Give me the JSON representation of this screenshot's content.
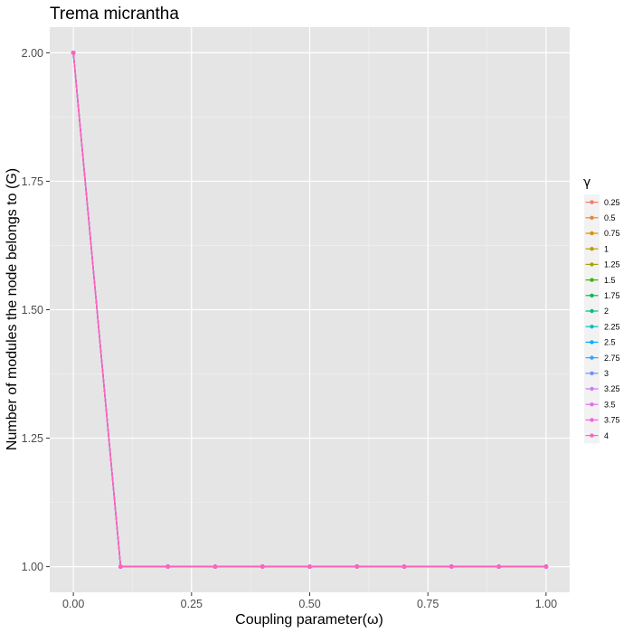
{
  "chart_data": {
    "type": "line",
    "title": "Trema micrantha",
    "xlabel": "Coupling parameter(ω)",
    "ylabel": "Number of modules the node belongs to (G)",
    "xlim": [
      -0.05,
      1.05
    ],
    "ylim": [
      0.95,
      2.05
    ],
    "x_ticks": [
      0,
      0.25,
      0.5,
      0.75,
      1
    ],
    "x_tick_labels": [
      "0.00",
      "0.25",
      "0.50",
      "0.75",
      "1.00"
    ],
    "y_ticks": [
      1,
      1.25,
      1.5,
      1.75,
      2
    ],
    "y_tick_labels": [
      "1.00",
      "1.25",
      "1.50",
      "1.75",
      "2.00"
    ],
    "grid": true,
    "legend_title": "γ",
    "legend_position": "right",
    "x": [
      0,
      0.1,
      0.2,
      0.3,
      0.4,
      0.5,
      0.6,
      0.7,
      0.8,
      0.9,
      1.0
    ],
    "series": [
      {
        "name": "0.25",
        "color": "#F8766D",
        "values": [
          2,
          1,
          1,
          1,
          1,
          1,
          1,
          1,
          1,
          1,
          1
        ]
      },
      {
        "name": "0.5",
        "color": "#EA8331",
        "values": [
          2,
          1,
          1,
          1,
          1,
          1,
          1,
          1,
          1,
          1,
          1
        ]
      },
      {
        "name": "0.75",
        "color": "#D89000",
        "values": [
          2,
          1,
          1,
          1,
          1,
          1,
          1,
          1,
          1,
          1,
          1
        ]
      },
      {
        "name": "1",
        "color": "#C09B00",
        "values": [
          2,
          1,
          1,
          1,
          1,
          1,
          1,
          1,
          1,
          1,
          1
        ]
      },
      {
        "name": "1.25",
        "color": "#A3A500",
        "values": [
          2,
          1,
          1,
          1,
          1,
          1,
          1,
          1,
          1,
          1,
          1
        ]
      },
      {
        "name": "1.5",
        "color": "#39B600",
        "values": [
          2,
          1,
          1,
          1,
          1,
          1,
          1,
          1,
          1,
          1,
          1
        ]
      },
      {
        "name": "1.75",
        "color": "#00BB4E",
        "values": [
          2,
          1,
          1,
          1,
          1,
          1,
          1,
          1,
          1,
          1,
          1
        ]
      },
      {
        "name": "2",
        "color": "#00BF7D",
        "values": [
          2,
          1,
          1,
          1,
          1,
          1,
          1,
          1,
          1,
          1,
          1
        ]
      },
      {
        "name": "2.25",
        "color": "#00BFC4",
        "values": [
          2,
          1,
          1,
          1,
          1,
          1,
          1,
          1,
          1,
          1,
          1
        ]
      },
      {
        "name": "2.5",
        "color": "#00B0F6",
        "values": [
          2,
          1,
          1,
          1,
          1,
          1,
          1,
          1,
          1,
          1,
          1
        ]
      },
      {
        "name": "2.75",
        "color": "#35A2FF",
        "values": [
          2,
          1,
          1,
          1,
          1,
          1,
          1,
          1,
          1,
          1,
          1
        ]
      },
      {
        "name": "3",
        "color": "#6F8EFF",
        "values": [
          2,
          1,
          1,
          1,
          1,
          1,
          1,
          1,
          1,
          1,
          1
        ]
      },
      {
        "name": "3.25",
        "color": "#C77CFF",
        "values": [
          2,
          1,
          1,
          1,
          1,
          1,
          1,
          1,
          1,
          1,
          1
        ]
      },
      {
        "name": "3.5",
        "color": "#E76BF3",
        "values": [
          2,
          1,
          1,
          1,
          1,
          1,
          1,
          1,
          1,
          1,
          1
        ]
      },
      {
        "name": "3.75",
        "color": "#FA62DB",
        "values": [
          2,
          1,
          1,
          1,
          1,
          1,
          1,
          1,
          1,
          1,
          1
        ]
      },
      {
        "name": "4",
        "color": "#FF62BC",
        "values": [
          2,
          1,
          1,
          1,
          1,
          1,
          1,
          1,
          1,
          1,
          1
        ]
      }
    ]
  }
}
